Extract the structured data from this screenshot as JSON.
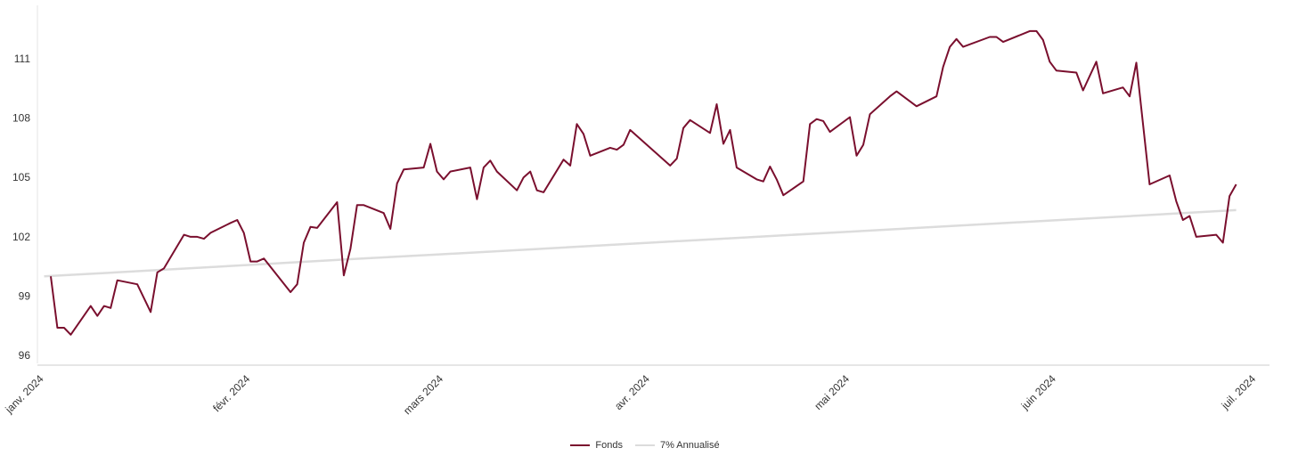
{
  "chart_data": {
    "type": "line",
    "title": "",
    "xlabel": "",
    "ylabel": "",
    "x_ticks": [
      {
        "label": "janv. 2024",
        "date": "2024-01-01"
      },
      {
        "label": "févr. 2024",
        "date": "2024-02-01"
      },
      {
        "label": "mars 2024",
        "date": "2024-03-01"
      },
      {
        "label": "avr. 2024",
        "date": "2024-04-01"
      },
      {
        "label": "mai 2024",
        "date": "2024-05-01"
      },
      {
        "label": "juin 2024",
        "date": "2024-06-01"
      },
      {
        "label": "juil. 2024",
        "date": "2024-07-01"
      }
    ],
    "y_ticks": [
      96,
      99,
      102,
      105,
      108,
      111
    ],
    "ylim": [
      95.6,
      113.7
    ],
    "xlim": [
      "2023-12-31",
      "2024-07-03"
    ],
    "grid": false,
    "legend_position": "bottom-center",
    "series": [
      {
        "name": "Fonds",
        "color": "#7a0f2e",
        "points": [
          [
            "2024-01-02",
            100.0
          ],
          [
            "2024-01-03",
            97.4
          ],
          [
            "2024-01-04",
            97.4
          ],
          [
            "2024-01-05",
            97.05
          ],
          [
            "2024-01-08",
            98.5
          ],
          [
            "2024-01-09",
            98.0
          ],
          [
            "2024-01-10",
            98.5
          ],
          [
            "2024-01-11",
            98.4
          ],
          [
            "2024-01-12",
            99.8
          ],
          [
            "2024-01-15",
            99.6
          ],
          [
            "2024-01-17",
            98.2
          ],
          [
            "2024-01-18",
            100.2
          ],
          [
            "2024-01-19",
            100.4
          ],
          [
            "2024-01-22",
            102.1
          ],
          [
            "2024-01-23",
            102.0
          ],
          [
            "2024-01-24",
            102.0
          ],
          [
            "2024-01-25",
            101.9
          ],
          [
            "2024-01-26",
            102.2
          ],
          [
            "2024-01-29",
            102.7
          ],
          [
            "2024-01-30",
            102.85
          ],
          [
            "2024-01-31",
            102.2
          ],
          [
            "2024-02-01",
            100.75
          ],
          [
            "2024-02-02",
            100.75
          ],
          [
            "2024-02-03",
            100.9
          ],
          [
            "2024-02-07",
            99.2
          ],
          [
            "2024-02-08",
            99.6
          ],
          [
            "2024-02-09",
            101.7
          ],
          [
            "2024-02-10",
            102.5
          ],
          [
            "2024-02-11",
            102.45
          ],
          [
            "2024-02-14",
            103.75
          ],
          [
            "2024-02-15",
            100.05
          ],
          [
            "2024-02-16",
            101.4
          ],
          [
            "2024-02-17",
            103.6
          ],
          [
            "2024-02-18",
            103.6
          ],
          [
            "2024-02-21",
            103.2
          ],
          [
            "2024-02-22",
            102.4
          ],
          [
            "2024-02-23",
            104.7
          ],
          [
            "2024-02-24",
            105.4
          ],
          [
            "2024-02-27",
            105.5
          ],
          [
            "2024-02-28",
            106.7
          ],
          [
            "2024-02-29",
            105.3
          ],
          [
            "2024-03-01",
            104.9
          ],
          [
            "2024-03-02",
            105.3
          ],
          [
            "2024-03-05",
            105.5
          ],
          [
            "2024-03-06",
            103.9
          ],
          [
            "2024-03-07",
            105.5
          ],
          [
            "2024-03-08",
            105.85
          ],
          [
            "2024-03-09",
            105.3
          ],
          [
            "2024-03-12",
            104.35
          ],
          [
            "2024-03-13",
            105.0
          ],
          [
            "2024-03-14",
            105.3
          ],
          [
            "2024-03-15",
            104.35
          ],
          [
            "2024-03-16",
            104.25
          ],
          [
            "2024-03-19",
            105.9
          ],
          [
            "2024-03-20",
            105.6
          ],
          [
            "2024-03-21",
            107.7
          ],
          [
            "2024-03-22",
            107.2
          ],
          [
            "2024-03-23",
            106.1
          ],
          [
            "2024-03-26",
            106.5
          ],
          [
            "2024-03-27",
            106.4
          ],
          [
            "2024-03-28",
            106.65
          ],
          [
            "2024-03-29",
            107.4
          ],
          [
            "2024-04-04",
            105.6
          ],
          [
            "2024-04-05",
            105.95
          ],
          [
            "2024-04-06",
            107.5
          ],
          [
            "2024-04-07",
            107.9
          ],
          [
            "2024-04-10",
            107.25
          ],
          [
            "2024-04-11",
            108.7
          ],
          [
            "2024-04-12",
            106.7
          ],
          [
            "2024-04-13",
            107.4
          ],
          [
            "2024-04-14",
            105.5
          ],
          [
            "2024-04-17",
            104.9
          ],
          [
            "2024-04-18",
            104.8
          ],
          [
            "2024-04-19",
            105.55
          ],
          [
            "2024-04-20",
            104.9
          ],
          [
            "2024-04-21",
            104.1
          ],
          [
            "2024-04-24",
            104.8
          ],
          [
            "2024-04-25",
            107.7
          ],
          [
            "2024-04-26",
            107.95
          ],
          [
            "2024-04-27",
            107.85
          ],
          [
            "2024-04-28",
            107.3
          ],
          [
            "2024-05-01",
            108.05
          ],
          [
            "2024-05-02",
            106.1
          ],
          [
            "2024-05-03",
            106.65
          ],
          [
            "2024-05-04",
            108.2
          ],
          [
            "2024-05-07",
            109.1
          ],
          [
            "2024-05-08",
            109.35
          ],
          [
            "2024-05-11",
            108.6
          ],
          [
            "2024-05-14",
            109.1
          ],
          [
            "2024-05-15",
            110.6
          ],
          [
            "2024-05-16",
            111.6
          ],
          [
            "2024-05-17",
            112.0
          ],
          [
            "2024-05-18",
            111.6
          ],
          [
            "2024-05-22",
            112.1
          ],
          [
            "2024-05-23",
            112.1
          ],
          [
            "2024-05-24",
            111.85
          ],
          [
            "2024-05-28",
            112.4
          ],
          [
            "2024-05-29",
            112.4
          ],
          [
            "2024-05-30",
            111.95
          ],
          [
            "2024-05-31",
            110.85
          ],
          [
            "2024-06-01",
            110.4
          ],
          [
            "2024-06-04",
            110.3
          ],
          [
            "2024-06-05",
            109.4
          ],
          [
            "2024-06-07",
            110.85
          ],
          [
            "2024-06-08",
            109.25
          ],
          [
            "2024-06-11",
            109.55
          ],
          [
            "2024-06-12",
            109.1
          ],
          [
            "2024-06-13",
            110.8
          ],
          [
            "2024-06-15",
            104.65
          ],
          [
            "2024-06-18",
            105.1
          ],
          [
            "2024-06-19",
            103.8
          ],
          [
            "2024-06-20",
            102.85
          ],
          [
            "2024-06-21",
            103.05
          ],
          [
            "2024-06-22",
            102.0
          ],
          [
            "2024-06-25",
            102.1
          ],
          [
            "2024-06-26",
            101.7
          ],
          [
            "2024-06-27",
            104.05
          ],
          [
            "2024-06-28",
            104.65
          ]
        ]
      },
      {
        "name": "7% Annualisé",
        "color": "#dcdcdc",
        "points": [
          [
            "2024-01-01",
            100.0
          ],
          [
            "2024-01-15",
            100.26
          ],
          [
            "2024-02-01",
            100.58
          ],
          [
            "2024-02-15",
            100.85
          ],
          [
            "2024-03-01",
            101.12
          ],
          [
            "2024-03-15",
            101.38
          ],
          [
            "2024-04-01",
            101.7
          ],
          [
            "2024-04-15",
            101.96
          ],
          [
            "2024-05-01",
            102.26
          ],
          [
            "2024-05-15",
            102.52
          ],
          [
            "2024-06-01",
            102.84
          ],
          [
            "2024-06-15",
            103.1
          ],
          [
            "2024-06-28",
            103.35
          ]
        ]
      }
    ]
  }
}
